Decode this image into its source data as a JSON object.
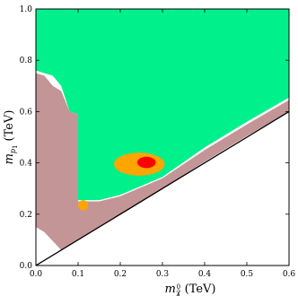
{
  "chart_data": {
    "type": "scatter",
    "x_axis": {
      "label_main": "m",
      "label_sub": "χ̃",
      "label_sup": "0",
      "label_sub2": "1",
      "label_unit": "(TeV)",
      "min": 0.0,
      "max": 0.6,
      "ticks": [
        0.0,
        0.1,
        0.2,
        0.3,
        0.4,
        0.5,
        0.6
      ],
      "tick_labels": [
        "0.0",
        "0.1",
        "0.2",
        "0.3",
        "0.4",
        "0.5",
        "0.6"
      ]
    },
    "y_axis": {
      "label_main": "m",
      "label_sub": "p",
      "label_sub2": "1",
      "label_unit": "(TeV)",
      "min": 0.0,
      "max": 1.0,
      "ticks": [
        0.0,
        0.2,
        0.4,
        0.6,
        0.8,
        1.0
      ],
      "tick_labels": [
        "0.0",
        "0.2",
        "0.4",
        "0.6",
        "0.8",
        "1.0"
      ]
    },
    "colors": {
      "green_region": "#00f08c",
      "pink_region": "#c49596",
      "orange_region": "#ffa500",
      "red_region": "#ff0000",
      "diagonal_line": "#000000"
    },
    "diagonal_line": {
      "x": [
        0.0,
        0.6
      ],
      "y": [
        0.0,
        0.6
      ]
    },
    "regions": [
      {
        "id": "green",
        "color_key": "green_region",
        "boundary": [
          [
            0.0,
            1.0
          ],
          [
            0.6,
            1.0
          ],
          [
            0.6,
            0.655
          ],
          [
            0.5,
            0.56
          ],
          [
            0.4,
            0.46
          ],
          [
            0.3,
            0.345
          ],
          [
            0.2,
            0.275
          ],
          [
            0.15,
            0.255
          ],
          [
            0.1,
            0.255
          ],
          [
            0.1,
            0.59
          ],
          [
            0.08,
            0.6
          ],
          [
            0.06,
            0.7
          ],
          [
            0.04,
            0.74
          ],
          [
            0.02,
            0.75
          ],
          [
            0.0,
            0.76
          ]
        ]
      },
      {
        "id": "pink-left",
        "color_key": "pink_region",
        "boundary": [
          [
            0.0,
            0.75
          ],
          [
            0.02,
            0.74
          ],
          [
            0.04,
            0.7
          ],
          [
            0.06,
            0.68
          ],
          [
            0.08,
            0.6
          ],
          [
            0.1,
            0.59
          ],
          [
            0.1,
            0.25
          ],
          [
            0.15,
            0.25
          ],
          [
            0.2,
            0.27
          ],
          [
            0.3,
            0.34
          ],
          [
            0.4,
            0.45
          ],
          [
            0.5,
            0.55
          ],
          [
            0.6,
            0.645
          ],
          [
            0.6,
            0.6
          ],
          [
            0.5,
            0.505
          ],
          [
            0.4,
            0.405
          ],
          [
            0.3,
            0.3
          ],
          [
            0.2,
            0.2
          ],
          [
            0.1,
            0.1
          ],
          [
            0.06,
            0.06
          ],
          [
            0.02,
            0.13
          ],
          [
            0.0,
            0.15
          ]
        ]
      },
      {
        "id": "orange",
        "color_key": "orange_region",
        "cx": 0.245,
        "cy": 0.395,
        "rx": 0.06,
        "ry": 0.045
      },
      {
        "id": "orange-small",
        "color_key": "orange_region",
        "cx": 0.112,
        "cy": 0.235,
        "rx": 0.012,
        "ry": 0.02
      },
      {
        "id": "red",
        "color_key": "red_region",
        "cx": 0.262,
        "cy": 0.402,
        "rx": 0.022,
        "ry": 0.022
      }
    ]
  }
}
